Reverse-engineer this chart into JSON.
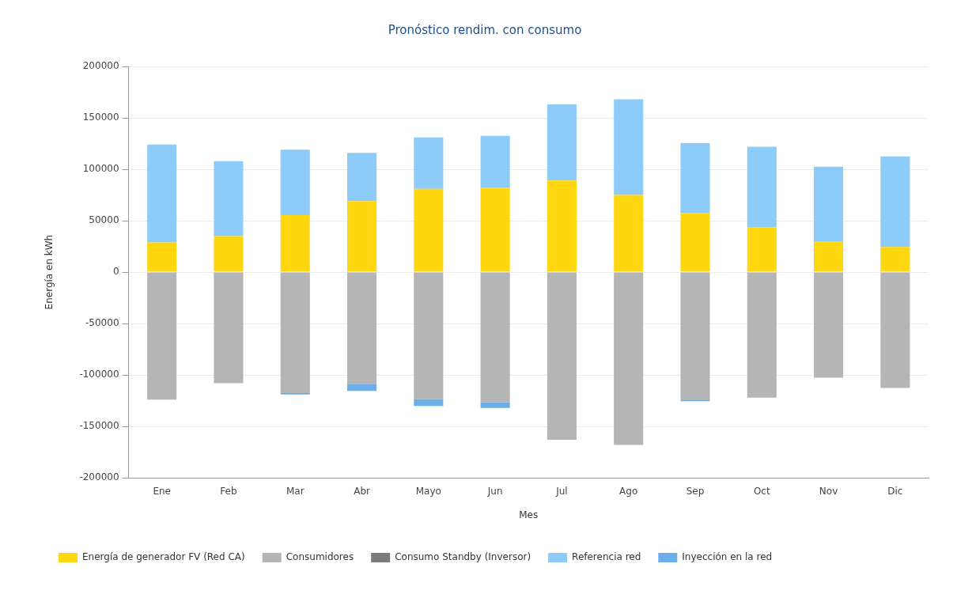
{
  "chart_data": {
    "type": "bar",
    "title": "Pronóstico rendim. con consumo",
    "xlabel": "Mes",
    "ylabel": "Energía en kWh",
    "categories": [
      "Ene",
      "Feb",
      "Mar",
      "Abr",
      "Mayo",
      "Jun",
      "Jul",
      "Ago",
      "Sep",
      "Oct",
      "Nov",
      "Dic"
    ],
    "series": [
      {
        "name": "Energía de generador FV (Red CA)",
        "color": "#ffd710",
        "values": [
          29000,
          35000,
          55500,
          69000,
          81000,
          82000,
          89000,
          75000,
          57500,
          43500,
          29500,
          24500
        ]
      },
      {
        "name": "Consumidores",
        "color": "#b5b5b5",
        "values": [
          -124000,
          -108000,
          -117500,
          -108500,
          -123500,
          -126500,
          -163000,
          -168000,
          -124500,
          -122000,
          -102500,
          -112500
        ]
      },
      {
        "name": "Consumo Standby (Inversor)",
        "color": "#7b7b7b",
        "values": [
          null,
          null,
          null,
          null,
          null,
          null,
          null,
          null,
          null,
          null,
          null,
          null
        ]
      },
      {
        "name": "Referencia red",
        "color": "#8dcbf9",
        "values": [
          95000,
          73000,
          63500,
          47000,
          50000,
          50500,
          74000,
          93000,
          68000,
          78500,
          73000,
          88000
        ]
      },
      {
        "name": "Inyección en la red",
        "color": "#6aaeea",
        "values": [
          null,
          null,
          -1500,
          -7000,
          -6500,
          -5500,
          null,
          null,
          -1000,
          null,
          null,
          null
        ]
      }
    ],
    "stacked": true,
    "ylim": [
      -200000,
      200000
    ],
    "yticks": [
      -200000,
      -150000,
      -100000,
      -50000,
      0,
      50000,
      100000,
      150000,
      200000
    ],
    "grid": "y",
    "legend": "bottom left"
  }
}
